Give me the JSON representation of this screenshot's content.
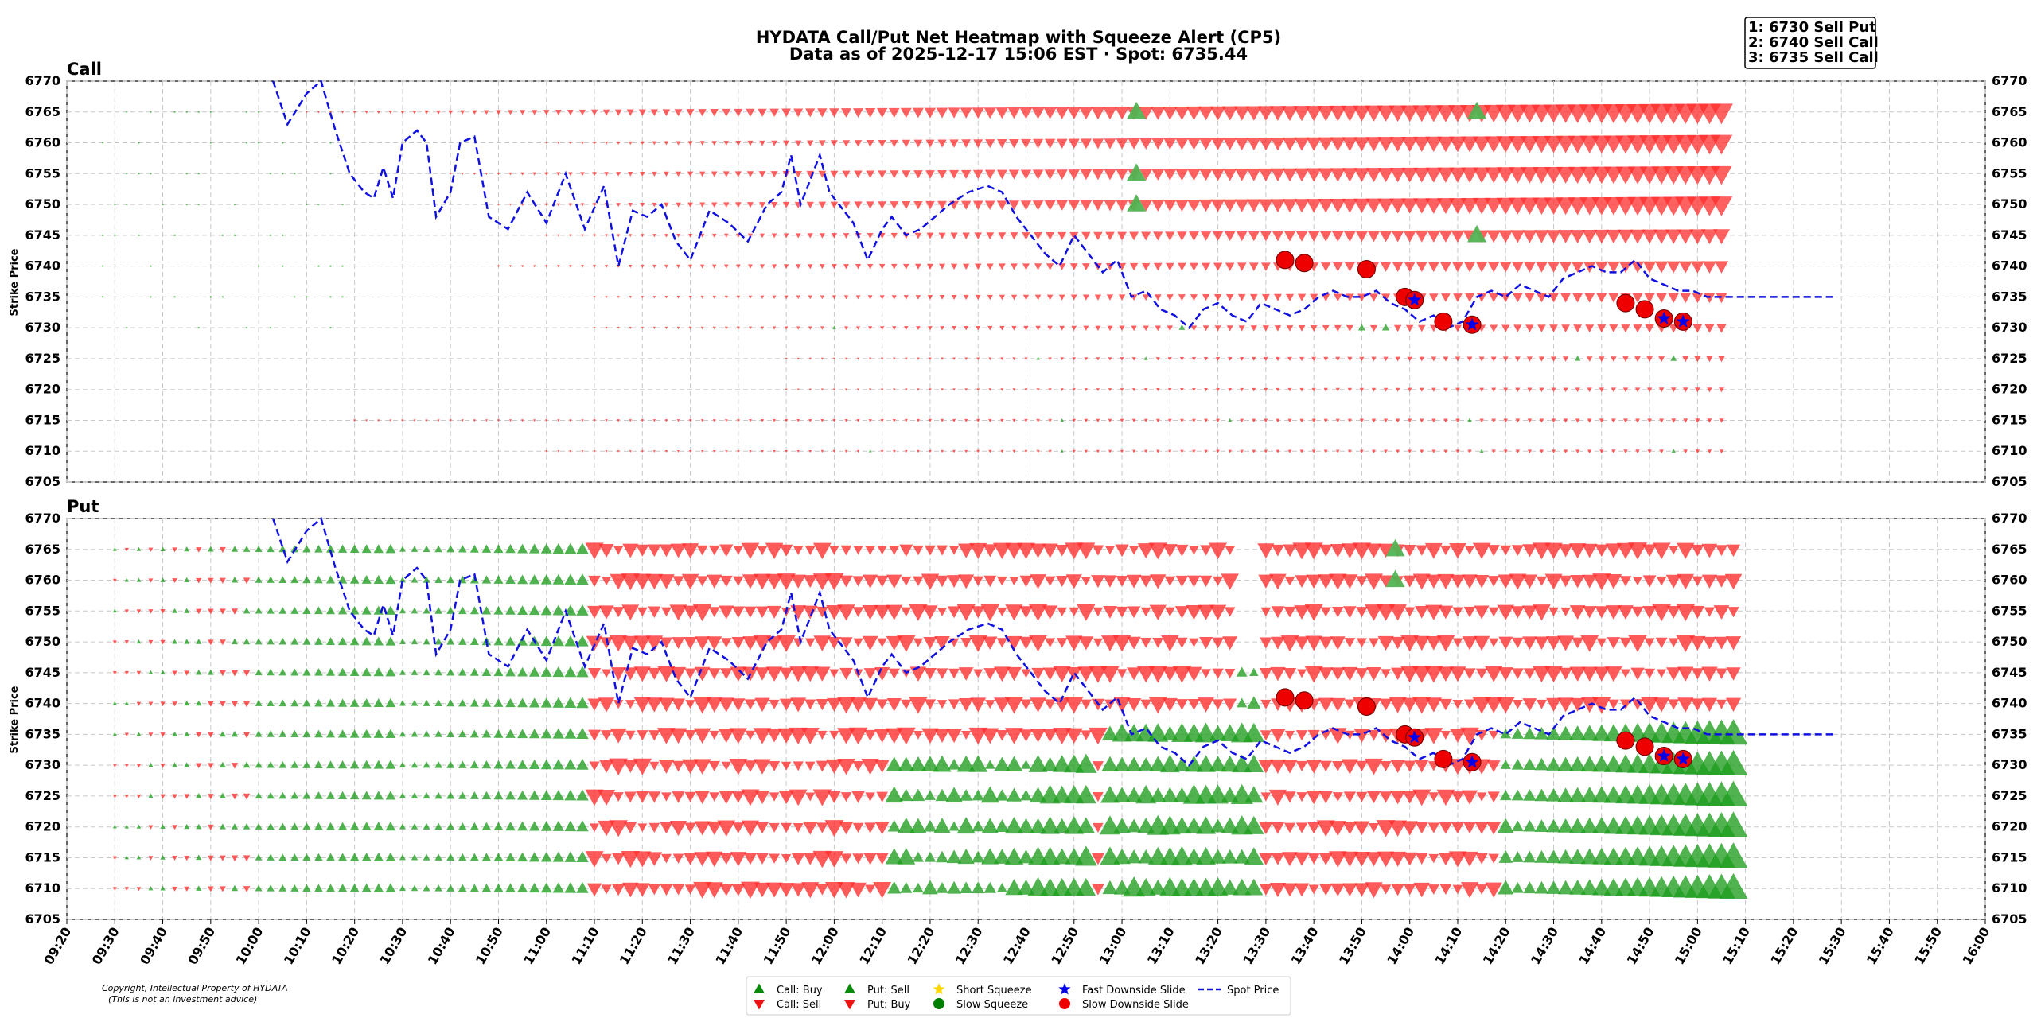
{
  "chart_data": {
    "type": "heatmap",
    "title": "HYDATA Call/Put Net Heatmap with Squeeze Alert (CP5)",
    "subtitle": "Data as of 2025-12-17 15:06 EST · Spot: 6735.44",
    "ranking": [
      "1: 6730 Sell Put",
      "2: 6740 Sell Call",
      "3: 6735 Sell Call"
    ],
    "panels": [
      {
        "title": "Call",
        "ylabel": "Strike Price"
      },
      {
        "title": "Put",
        "ylabel": "Strike Price"
      }
    ],
    "ylim": [
      6705,
      6770
    ],
    "y_ticks": [
      6770,
      6765,
      6760,
      6755,
      6750,
      6745,
      6740,
      6735,
      6730,
      6725,
      6720,
      6715,
      6710,
      6705
    ],
    "x_ticks": [
      "09:20",
      "09:30",
      "09:40",
      "09:50",
      "10:00",
      "10:10",
      "10:20",
      "10:30",
      "10:40",
      "10:50",
      "11:00",
      "11:10",
      "11:20",
      "11:30",
      "11:40",
      "11:50",
      "12:00",
      "12:10",
      "12:20",
      "12:30",
      "12:40",
      "12:50",
      "13:00",
      "13:10",
      "13:20",
      "13:30",
      "13:40",
      "13:50",
      "14:00",
      "14:10",
      "14:20",
      "14:30",
      "14:40",
      "14:50",
      "15:00",
      "15:10",
      "15:20",
      "15:30",
      "15:40",
      "15:50",
      "16:00"
    ],
    "strikes": [
      6765,
      6760,
      6755,
      6750,
      6745,
      6740,
      6735,
      6730,
      6725,
      6720,
      6715,
      6710
    ],
    "spot_price": {
      "name": "Spot Price",
      "x_min": [
        43,
        46,
        50,
        53,
        56,
        59,
        62,
        64,
        66,
        68,
        70,
        73,
        75,
        77,
        80,
        82,
        85,
        88,
        92,
        96,
        100,
        104,
        108,
        112,
        115,
        118,
        121,
        124,
        127,
        130,
        134,
        138,
        142,
        146,
        149,
        151,
        153,
        155,
        157,
        159,
        161,
        164,
        167,
        170,
        172,
        175,
        178,
        181,
        184,
        188,
        192,
        195,
        198,
        201,
        204,
        207,
        210,
        213,
        216,
        219,
        222,
        225,
        228,
        231,
        234,
        237,
        240,
        243,
        246,
        249,
        252,
        255,
        258,
        261,
        264,
        267,
        270,
        273,
        276,
        279,
        282,
        285,
        288,
        291,
        294,
        297,
        300,
        303,
        306,
        309,
        312,
        315,
        318,
        321,
        324,
        327,
        330,
        333,
        336,
        339,
        342,
        345,
        348,
        351,
        354,
        357,
        360,
        363,
        366,
        369
      ],
      "y": [
        6770,
        6763,
        6768,
        6770,
        6762,
        6755,
        6752,
        6751,
        6756,
        6751,
        6760,
        6762,
        6760,
        6748,
        6752,
        6760,
        6761,
        6748,
        6746,
        6752,
        6747,
        6755,
        6746,
        6753,
        6740,
        6749,
        6748,
        6750,
        6744,
        6741,
        6749,
        6747,
        6744,
        6750,
        6752,
        6758,
        6750,
        6754,
        6758,
        6752,
        6750,
        6747,
        6741,
        6746,
        6748,
        6745,
        6746,
        6748,
        6750,
        6752,
        6753,
        6752,
        6748,
        6745,
        6742,
        6740,
        6745,
        6742,
        6739,
        6741,
        6735,
        6736,
        6733,
        6732,
        6730,
        6733,
        6734,
        6732,
        6731,
        6734,
        6733,
        6732,
        6733,
        6735,
        6736,
        6735,
        6735,
        6736,
        6734,
        6733,
        6731,
        6732,
        6730,
        6731,
        6735,
        6736,
        6735,
        6737,
        6736,
        6735,
        6738,
        6739,
        6740,
        6739,
        6739,
        6741,
        6738,
        6737,
        6736,
        6736,
        6735,
        6735,
        6735,
        6735,
        6735,
        6735,
        6735,
        6735,
        6735,
        6735
      ]
    },
    "slow_downside_slide": [
      {
        "x_min": 254,
        "y": 6741
      },
      {
        "x_min": 258,
        "y": 6740.5
      },
      {
        "x_min": 271,
        "y": 6739.5
      },
      {
        "x_min": 279,
        "y": 6735
      },
      {
        "x_min": 281,
        "y": 6734.5
      },
      {
        "x_min": 287,
        "y": 6731
      },
      {
        "x_min": 293,
        "y": 6730.5
      },
      {
        "x_min": 325,
        "y": 6734
      },
      {
        "x_min": 329,
        "y": 6733
      },
      {
        "x_min": 333,
        "y": 6731.5
      },
      {
        "x_min": 337,
        "y": 6731
      }
    ],
    "fast_downside_slide": [
      {
        "x_min": 281,
        "y": 6734.5
      },
      {
        "x_min": 293,
        "y": 6730.5
      },
      {
        "x_min": 333,
        "y": 6731.5
      },
      {
        "x_min": 337,
        "y": 6731
      }
    ],
    "call_buy_markers": [
      {
        "x_min": 223,
        "y": 6765
      },
      {
        "x_min": 223,
        "y": 6755
      },
      {
        "x_min": 223,
        "y": 6750
      },
      {
        "x_min": 294,
        "y": 6765
      },
      {
        "x_min": 294,
        "y": 6745
      }
    ],
    "put_sell_markers": [
      {
        "x_min": 277,
        "y": 6765
      },
      {
        "x_min": 277,
        "y": 6760
      }
    ],
    "legend": [
      {
        "label": "Call: Buy",
        "icon": "triangle-up-green"
      },
      {
        "label": "Call: Sell",
        "icon": "triangle-down-red"
      },
      {
        "label": "Put: Sell",
        "icon": "triangle-up-green"
      },
      {
        "label": "Put: Buy",
        "icon": "triangle-down-red"
      },
      {
        "label": "Short Squeeze",
        "icon": "star-gold"
      },
      {
        "label": "Slow Squeeze",
        "icon": "circle-green"
      },
      {
        "label": "Fast Downside Slide",
        "icon": "star-blue"
      },
      {
        "label": "Slow Downside Slide",
        "icon": "circle-red"
      },
      {
        "label": "Spot Price",
        "icon": "dashed-line-blue"
      }
    ],
    "colors": {
      "sell": "#ff2b2b",
      "buy": "#1f9e1f",
      "spot": "#1010e0",
      "slow_slide": "#ee0000",
      "fast_slide": "#0000ee",
      "short_squeeze": "#ffd700",
      "slow_squeeze": "#008000",
      "grid": "#c8c8c8"
    }
  },
  "footer": {
    "copyright_line1": "Copyright, Intellectual Property of HYDATA",
    "copyright_line2": "(This is not an investment advice)"
  }
}
